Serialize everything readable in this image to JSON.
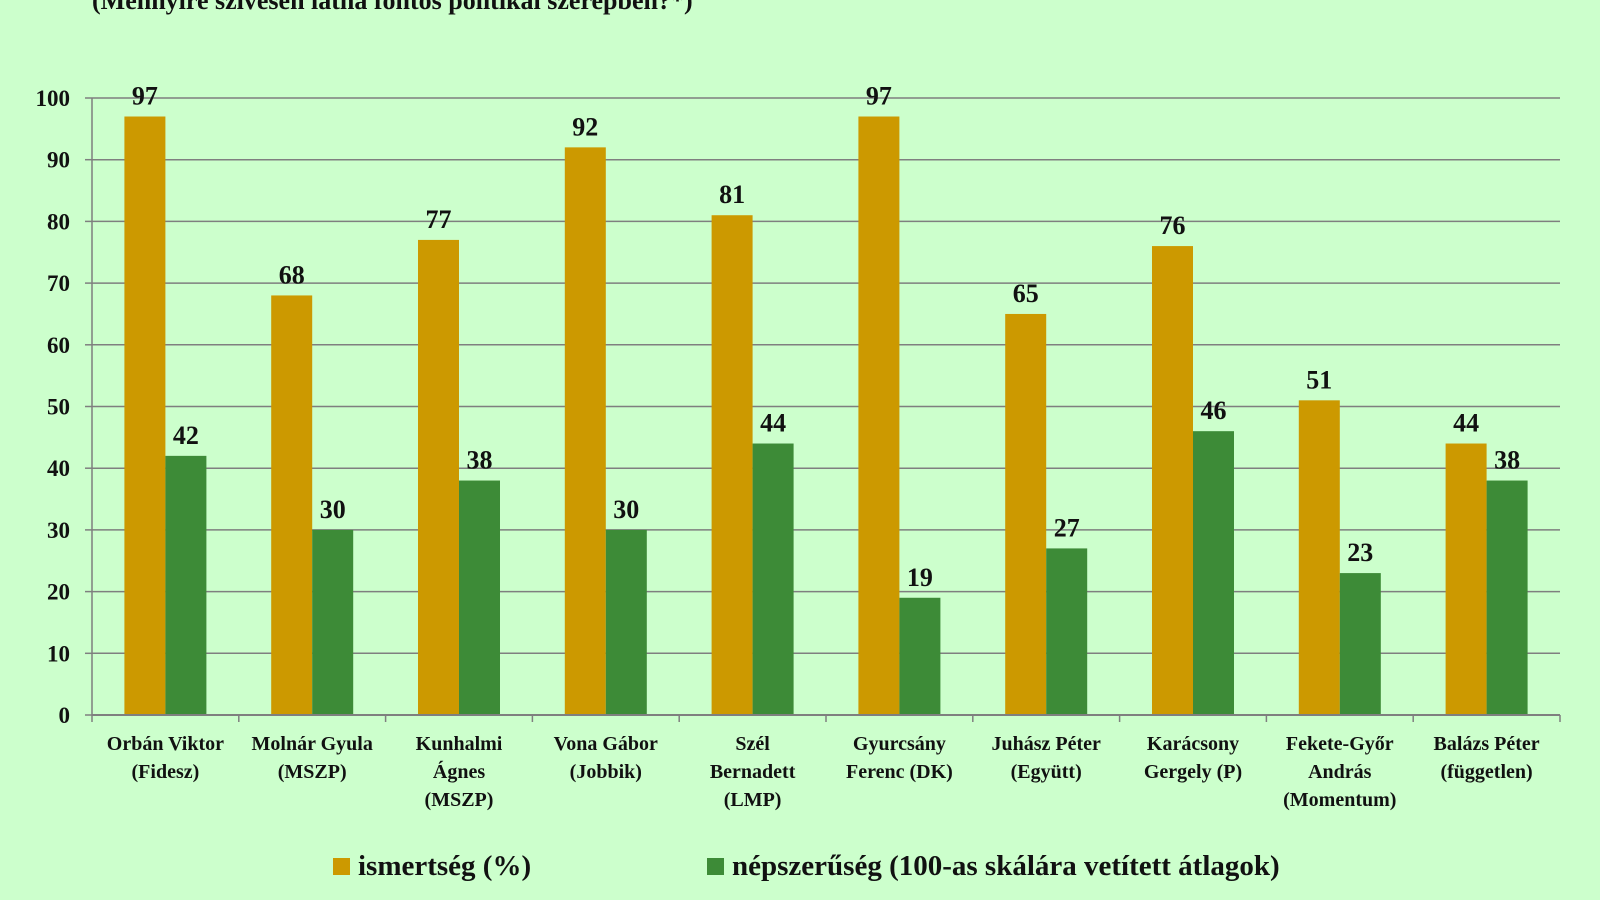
{
  "title": "(Mennyire szívesen látná fontos politikai szerepben?*)",
  "colors": {
    "background": "#ccffcc",
    "series1": "#cc9900",
    "series2": "#3d8b37",
    "grid": "#7f7f7f"
  },
  "chart_data": {
    "type": "bar",
    "ylim": [
      0,
      100
    ],
    "yticks": [
      0,
      10,
      20,
      30,
      40,
      50,
      60,
      70,
      80,
      90,
      100
    ],
    "grid": true,
    "legend_position": "bottom",
    "categories": [
      [
        "Orbán Viktor",
        "(Fidesz)"
      ],
      [
        "Molnár Gyula",
        "(MSZP)"
      ],
      [
        "Kunhalmi",
        "Ágnes",
        "(MSZP)"
      ],
      [
        "Vona Gábor",
        "(Jobbik)"
      ],
      [
        "Szél",
        "Bernadett",
        "(LMP)"
      ],
      [
        "Gyurcsány",
        "Ferenc (DK)"
      ],
      [
        "Juhász Péter",
        "(Együtt)"
      ],
      [
        "Karácsony",
        "Gergely (P)"
      ],
      [
        "Fekete-Győr",
        "András",
        "(Momentum)"
      ],
      [
        "Balázs Péter",
        "(független)"
      ]
    ],
    "series": [
      {
        "name": "ismertség (%)",
        "color": "#cc9900",
        "values": [
          97,
          68,
          77,
          92,
          81,
          97,
          65,
          76,
          51,
          44
        ]
      },
      {
        "name": "népszerűség (100-as skálára vetített átlagok)",
        "color": "#3d8b37",
        "values": [
          42,
          30,
          38,
          30,
          44,
          19,
          27,
          46,
          23,
          38
        ]
      }
    ]
  }
}
